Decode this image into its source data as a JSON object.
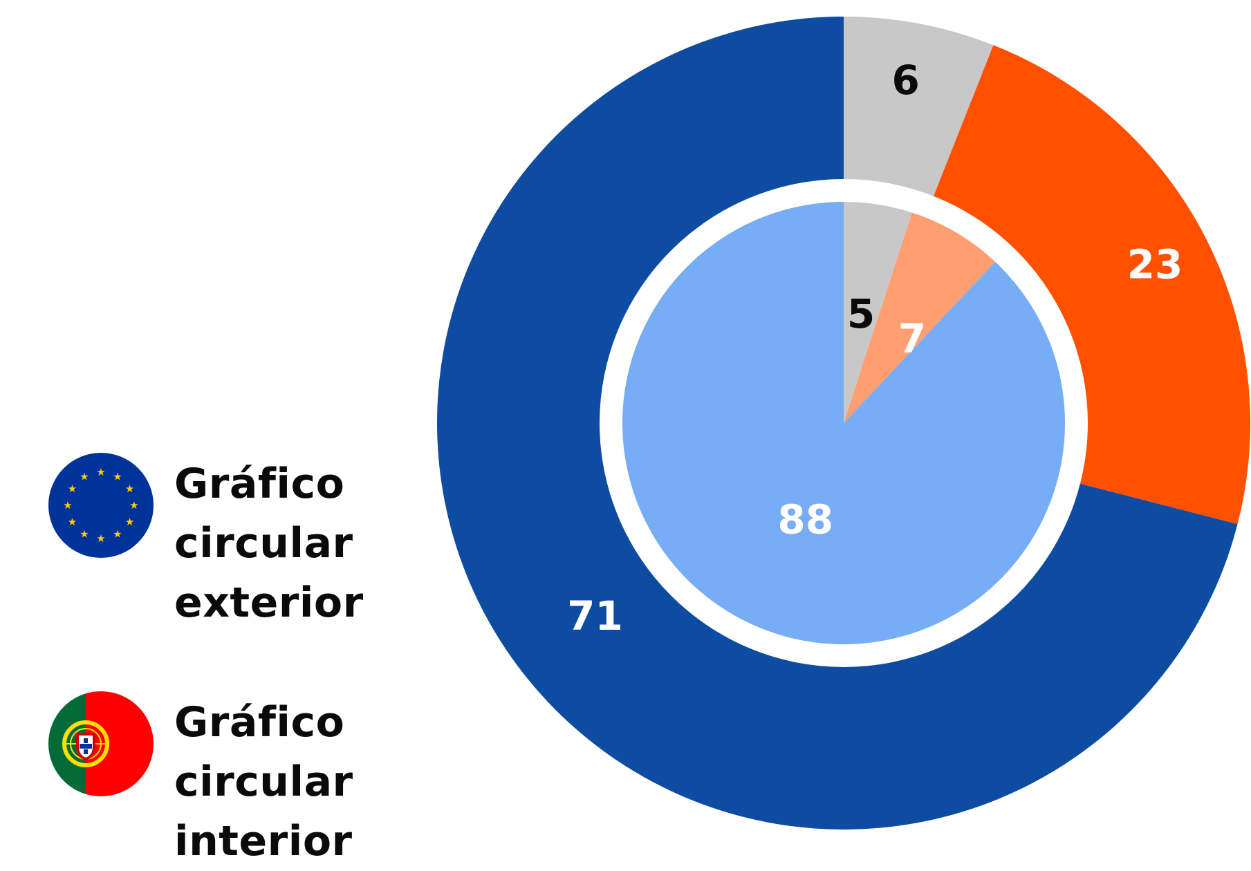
{
  "chart_data": [
    {
      "type": "pie",
      "variant": "donut",
      "ring": "outer",
      "legend_entry": "Gráfico circular exterior",
      "start_angle": "12 o'clock",
      "direction": "clockwise",
      "slices": [
        {
          "label": "6",
          "value": 6,
          "color": "#c8c8c8",
          "label_color": "#0a0a0a"
        },
        {
          "label": "23",
          "value": 23,
          "color": "#ff5000",
          "label_color": "#ffffff"
        },
        {
          "label": "71",
          "value": 71,
          "color": "#0e4ca1",
          "label_color": "#ffffff"
        }
      ]
    },
    {
      "type": "pie",
      "ring": "inner",
      "legend_entry": "Gráfico circular interior",
      "start_angle": "12 o'clock",
      "direction": "clockwise",
      "slices": [
        {
          "label": "5",
          "value": 5,
          "color": "#c8c8c8",
          "label_color": "#0a0a0a"
        },
        {
          "label": "7",
          "value": 7,
          "color": "#ff9e70",
          "label_color": "#ffffff"
        },
        {
          "label": "88",
          "value": 88,
          "color": "#76adf4",
          "label_color": "#ffffff"
        }
      ]
    }
  ],
  "legend": {
    "placement": "left",
    "items": [
      {
        "icon": "eu-flag-icon",
        "lines": [
          "Gráfico",
          "circular",
          "exterior"
        ]
      },
      {
        "icon": "portugal-flag-icon",
        "lines": [
          "Gráfico",
          "circular",
          "interior"
        ]
      }
    ]
  },
  "colors": {
    "eu_blue": "#003399",
    "eu_star": "#ffcc00",
    "pt_green": "#046a38",
    "pt_red": "#ff0000",
    "pt_sphere": "#ffe000"
  }
}
